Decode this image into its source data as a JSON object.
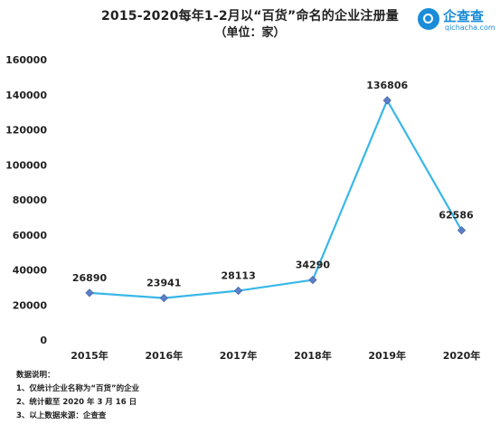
{
  "chart_data": {
    "type": "line",
    "title": "2015-2020每年1-2月以“百货”命名的企业注册量",
    "subtitle": "（单位：家）",
    "categories": [
      "2015年",
      "2016年",
      "2017年",
      "2018年",
      "2019年",
      "2020年"
    ],
    "series": [
      {
        "values": [
          26890,
          23941,
          28113,
          34290,
          136806,
          62586
        ]
      }
    ],
    "data_labels": [
      "26890",
      "23941",
      "28113",
      "34290",
      "136806",
      "62586"
    ],
    "ylim": [
      0,
      160000
    ],
    "yticks": [
      0,
      20000,
      40000,
      60000,
      80000,
      100000,
      120000,
      140000,
      160000
    ],
    "grid": false,
    "line_color": "#39b7e8",
    "marker_color": "#5b7fc9"
  },
  "logo": {
    "name": "企查查",
    "domain": "qichacha.com"
  },
  "notes": [
    "数据说明：",
    "1、仅统计企业名称为“百货”的企业",
    "2、统计截至 2020 年 3 月 16 日",
    "3、以上数据来源：企查查"
  ]
}
